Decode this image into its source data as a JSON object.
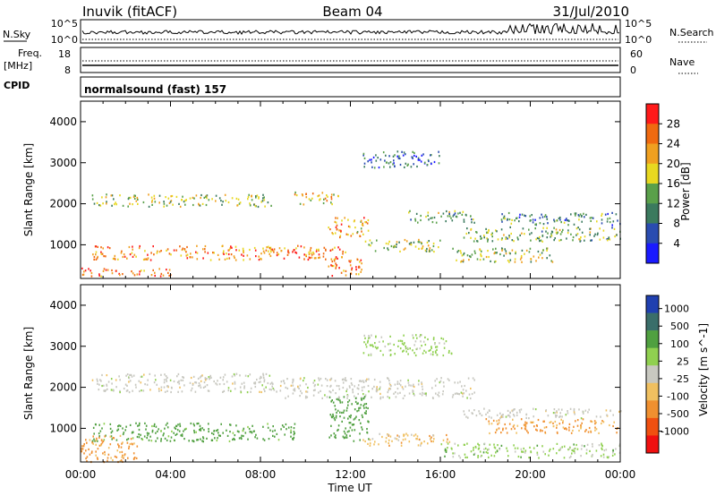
{
  "header": {
    "station": "Inuvik (fitACF)",
    "beam": "Beam 04",
    "date": "31/Jul/2010"
  },
  "noise_panel": {
    "left_label": "N.Sky",
    "left_ticks": [
      "10^5",
      "10^0"
    ],
    "right_label": "N.Search",
    "right_ticks": [
      "10^5",
      "10^0"
    ]
  },
  "freq_panel": {
    "left_label_line1": "Freq.",
    "left_label_line2": "[MHz]",
    "left_ticks": [
      "18",
      "8"
    ],
    "right_label": "Nave",
    "right_ticks": [
      "60",
      "0"
    ]
  },
  "cpid": {
    "label": "CPID",
    "mode": "normalsound (fast) 157"
  },
  "x_axis": {
    "title": "Time UT",
    "ticks": [
      "00:00",
      "04:00",
      "08:00",
      "12:00",
      "16:00",
      "20:00",
      "00:00"
    ]
  },
  "y_axis_title": "Slant Range [km]",
  "y_ticks": [
    "1000",
    "2000",
    "3000",
    "4000"
  ],
  "power_scale": {
    "label": "Power [dB]",
    "ticks": [
      "4",
      "8",
      "12",
      "16",
      "20",
      "24",
      "28"
    ],
    "colors": [
      "#1a1aff",
      "#2a4cb0",
      "#3b7a5e",
      "#5aa04a",
      "#e8d820",
      "#f0a020",
      "#f06a10",
      "#ff1a1a"
    ]
  },
  "velocity_scale": {
    "label": "Velocity [m s^-1]",
    "ticks": [
      "1000",
      "500",
      "100",
      "25",
      "-25",
      "-100",
      "-500",
      "-1000"
    ],
    "colors": [
      "#2040b0",
      "#3a6e6a",
      "#50a040",
      "#90d050",
      "#c8c8c0",
      "#f0c060",
      "#f09030",
      "#f05010",
      "#f01010"
    ]
  },
  "chart_data": [
    {
      "type": "heatmap",
      "title": "Power [dB]",
      "xlabel": "Time UT",
      "ylabel": "Slant Range [km]",
      "xlim": [
        "00:00",
        "24:00"
      ],
      "ylim": [
        180,
        4500
      ],
      "zlim": [
        0,
        32
      ],
      "bands": [
        {
          "t0": 0.5,
          "t1": 8.5,
          "r0": 1950,
          "r1": 2250,
          "z": 16
        },
        {
          "t0": 9.5,
          "t1": 11.5,
          "r0": 2000,
          "r1": 2300,
          "z": 20
        },
        {
          "t0": 14.5,
          "t1": 17.5,
          "r0": 1550,
          "r1": 1850,
          "z": 14
        },
        {
          "t0": 0.5,
          "t1": 11.8,
          "r0": 650,
          "r1": 1000,
          "z": 24
        },
        {
          "t0": 0.0,
          "t1": 4.0,
          "r0": 250,
          "r1": 450,
          "z": 26
        },
        {
          "t0": 11.0,
          "t1": 12.8,
          "r0": 1200,
          "r1": 1700,
          "z": 22
        },
        {
          "t0": 11.0,
          "t1": 12.5,
          "r0": 250,
          "r1": 700,
          "z": 24
        },
        {
          "t0": 12.5,
          "t1": 16.0,
          "r0": 850,
          "r1": 1150,
          "z": 16
        },
        {
          "t0": 17.0,
          "t1": 24.0,
          "r0": 1100,
          "r1": 1450,
          "z": 14
        },
        {
          "t0": 18.5,
          "t1": 24.0,
          "r0": 1500,
          "r1": 1800,
          "z": 10
        },
        {
          "t0": 16.5,
          "t1": 21.0,
          "r0": 600,
          "r1": 950,
          "z": 16
        },
        {
          "t0": 12.5,
          "t1": 16.0,
          "r0": 2900,
          "r1": 3300,
          "z": 8
        }
      ]
    },
    {
      "type": "heatmap",
      "title": "Velocity [m s^-1]",
      "xlabel": "Time UT",
      "ylabel": "Slant Range [km]",
      "xlim": [
        "00:00",
        "24:00"
      ],
      "ylim": [
        180,
        4500
      ],
      "zlim": [
        -1000,
        1000
      ],
      "bands": [
        {
          "t0": 0.5,
          "t1": 9.0,
          "r0": 1900,
          "r1": 2350,
          "z": 0
        },
        {
          "t0": 9.0,
          "t1": 17.5,
          "r0": 1750,
          "r1": 2250,
          "z": 0
        },
        {
          "t0": 0.5,
          "t1": 9.5,
          "r0": 700,
          "r1": 1150,
          "z": 200
        },
        {
          "t0": 11.0,
          "t1": 12.8,
          "r0": 650,
          "r1": 1800,
          "z": 250
        },
        {
          "t0": 0.0,
          "t1": 2.5,
          "r0": 200,
          "r1": 850,
          "z": -150
        },
        {
          "t0": 17.0,
          "t1": 24.0,
          "r0": 1250,
          "r1": 1500,
          "z": 0
        },
        {
          "t0": 18.0,
          "t1": 24.0,
          "r0": 900,
          "r1": 1250,
          "z": -120
        },
        {
          "t0": 12.5,
          "t1": 16.5,
          "r0": 600,
          "r1": 900,
          "z": -60
        },
        {
          "t0": 16.0,
          "t1": 24.0,
          "r0": 300,
          "r1": 650,
          "z": 60
        },
        {
          "t0": 12.5,
          "t1": 16.5,
          "r0": 2800,
          "r1": 3300,
          "z": 40
        }
      ]
    }
  ]
}
